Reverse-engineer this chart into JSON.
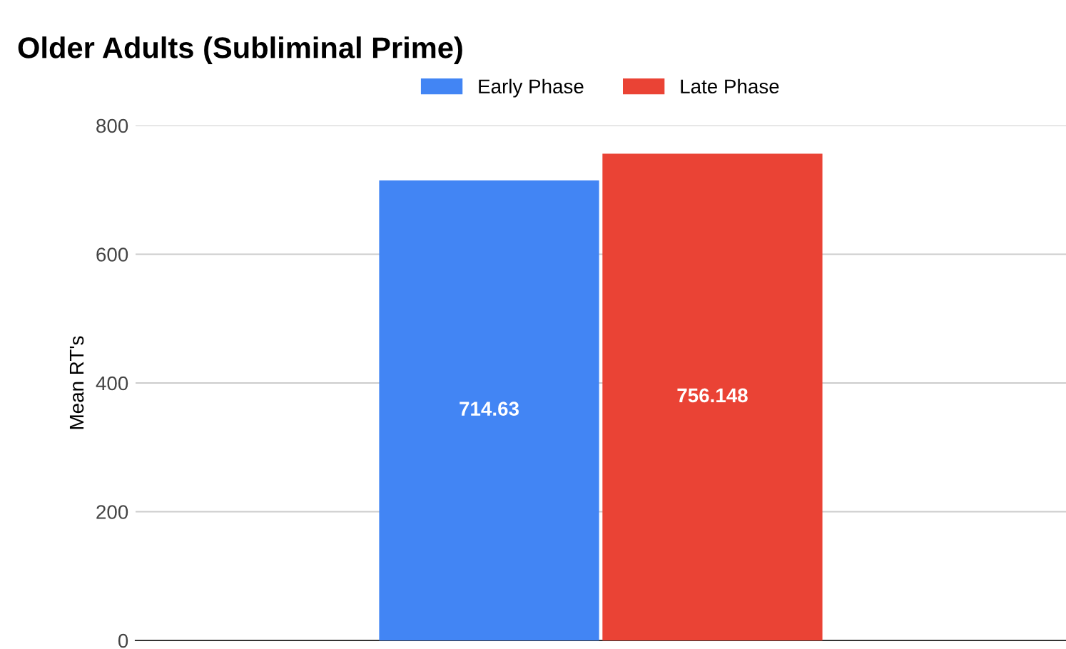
{
  "chart_data": {
    "type": "bar",
    "title": "Older Adults (Subliminal Prime)",
    "ylabel": "Mean RT's",
    "categories": [
      null
    ],
    "series": [
      {
        "name": "Early Phase",
        "color": "#4285f4",
        "values": [
          714.63
        ]
      },
      {
        "name": "Late Phase",
        "color": "#ea4335",
        "values": [
          756.148
        ]
      }
    ],
    "ylim": [
      0,
      800
    ],
    "yticks": [
      0,
      200,
      400,
      600,
      800
    ],
    "grid": "y",
    "legend": "top",
    "data_labels": true
  }
}
